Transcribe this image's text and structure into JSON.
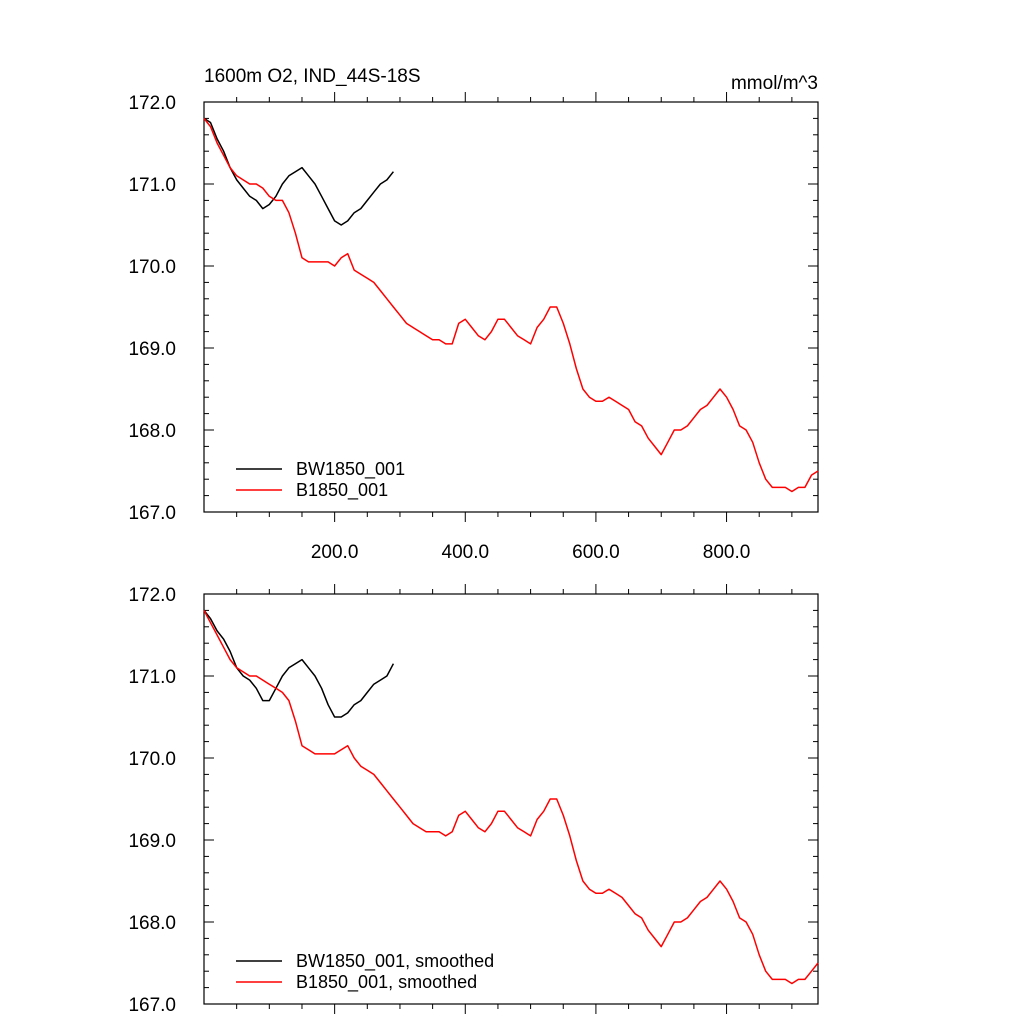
{
  "title_left": "1600m O2, IND_44S-18S",
  "title_right": "mmol/m^3",
  "colors": {
    "bw": "#000000",
    "b": "#ff0000"
  },
  "chart_data": [
    {
      "type": "line",
      "xlim": [
        0,
        940
      ],
      "ylim": [
        167,
        172
      ],
      "x_ticks": [
        200,
        400,
        600,
        800
      ],
      "x_tick_labels": [
        "200.0",
        "400.0",
        "600.0",
        "800.0"
      ],
      "y_ticks": [
        167,
        168,
        169,
        170,
        171,
        172
      ],
      "y_tick_labels": [
        "167.0",
        "168.0",
        "169.0",
        "170.0",
        "171.0",
        "172.0"
      ],
      "legend_position": "bottom-left",
      "series": [
        {
          "name": "BW1850_001",
          "color": "#000000",
          "x": [
            0,
            10,
            20,
            30,
            40,
            50,
            60,
            70,
            80,
            90,
            100,
            110,
            120,
            130,
            140,
            150,
            160,
            170,
            180,
            190,
            200,
            210,
            220,
            230,
            240,
            250,
            260,
            270,
            280,
            290
          ],
          "y": [
            171.8,
            171.75,
            171.55,
            171.4,
            171.2,
            171.05,
            170.95,
            170.85,
            170.8,
            170.7,
            170.75,
            170.85,
            171.0,
            171.1,
            171.15,
            171.2,
            171.1,
            171.0,
            170.85,
            170.7,
            170.55,
            170.5,
            170.55,
            170.65,
            170.7,
            170.8,
            170.9,
            171.0,
            171.05,
            171.15
          ]
        },
        {
          "name": "B1850_001",
          "color": "#ff0000",
          "x": [
            0,
            10,
            20,
            30,
            40,
            50,
            60,
            70,
            80,
            90,
            100,
            110,
            120,
            130,
            140,
            150,
            160,
            170,
            180,
            190,
            200,
            210,
            220,
            230,
            240,
            250,
            260,
            270,
            280,
            290,
            300,
            310,
            320,
            330,
            340,
            350,
            360,
            370,
            380,
            390,
            400,
            410,
            420,
            430,
            440,
            450,
            460,
            470,
            480,
            490,
            500,
            510,
            520,
            530,
            540,
            550,
            560,
            570,
            580,
            590,
            600,
            610,
            620,
            630,
            640,
            650,
            660,
            670,
            680,
            690,
            700,
            710,
            720,
            730,
            740,
            750,
            760,
            770,
            780,
            790,
            800,
            810,
            820,
            830,
            840,
            850,
            860,
            870,
            880,
            890,
            900,
            910,
            920,
            930,
            940
          ],
          "y": [
            171.8,
            171.7,
            171.5,
            171.35,
            171.2,
            171.1,
            171.05,
            171.0,
            171.0,
            170.95,
            170.85,
            170.8,
            170.8,
            170.65,
            170.4,
            170.1,
            170.05,
            170.05,
            170.05,
            170.05,
            170.0,
            170.1,
            170.15,
            169.95,
            169.9,
            169.85,
            169.8,
            169.7,
            169.6,
            169.5,
            169.4,
            169.3,
            169.25,
            169.2,
            169.15,
            169.1,
            169.1,
            169.05,
            169.05,
            169.3,
            169.35,
            169.25,
            169.15,
            169.1,
            169.2,
            169.35,
            169.35,
            169.25,
            169.15,
            169.1,
            169.05,
            169.25,
            169.35,
            169.5,
            169.5,
            169.3,
            169.05,
            168.75,
            168.5,
            168.4,
            168.35,
            168.35,
            168.4,
            168.35,
            168.3,
            168.25,
            168.1,
            168.05,
            167.9,
            167.8,
            167.7,
            167.85,
            168.0,
            168.0,
            168.05,
            168.15,
            168.25,
            168.3,
            168.4,
            168.5,
            168.4,
            168.25,
            168.05,
            168.0,
            167.85,
            167.6,
            167.4,
            167.3,
            167.3,
            167.3,
            167.25,
            167.3,
            167.3,
            167.45,
            167.5
          ]
        }
      ]
    },
    {
      "type": "line",
      "xlim": [
        0,
        940
      ],
      "ylim": [
        167,
        172
      ],
      "y_ticks": [
        167,
        168,
        169,
        170,
        171,
        172
      ],
      "y_tick_labels": [
        "167.0",
        "168.0",
        "169.0",
        "170.0",
        "171.0",
        "172.0"
      ],
      "legend_position": "bottom-left",
      "series": [
        {
          "name": "BW1850_001, smoothed",
          "color": "#000000",
          "x": [
            0,
            10,
            20,
            30,
            40,
            50,
            60,
            70,
            80,
            90,
            100,
            110,
            120,
            130,
            140,
            150,
            160,
            170,
            180,
            190,
            200,
            210,
            220,
            230,
            240,
            250,
            260,
            270,
            280,
            290
          ],
          "y": [
            171.8,
            171.7,
            171.55,
            171.45,
            171.3,
            171.1,
            171.0,
            170.95,
            170.85,
            170.7,
            170.7,
            170.85,
            171.0,
            171.1,
            171.15,
            171.2,
            171.1,
            171.0,
            170.85,
            170.65,
            170.5,
            170.5,
            170.55,
            170.65,
            170.7,
            170.8,
            170.9,
            170.95,
            171.0,
            171.15
          ]
        },
        {
          "name": "B1850_001, smoothed",
          "color": "#ff0000",
          "x": [
            0,
            10,
            20,
            30,
            40,
            50,
            60,
            70,
            80,
            90,
            100,
            110,
            120,
            130,
            140,
            150,
            160,
            170,
            180,
            190,
            200,
            210,
            220,
            230,
            240,
            250,
            260,
            270,
            280,
            290,
            300,
            310,
            320,
            330,
            340,
            350,
            360,
            370,
            380,
            390,
            400,
            410,
            420,
            430,
            440,
            450,
            460,
            470,
            480,
            490,
            500,
            510,
            520,
            530,
            540,
            550,
            560,
            570,
            580,
            590,
            600,
            610,
            620,
            630,
            640,
            650,
            660,
            670,
            680,
            690,
            700,
            710,
            720,
            730,
            740,
            750,
            760,
            770,
            780,
            790,
            800,
            810,
            820,
            830,
            840,
            850,
            860,
            870,
            880,
            890,
            900,
            910,
            920,
            930,
            940
          ],
          "y": [
            171.8,
            171.65,
            171.5,
            171.35,
            171.2,
            171.1,
            171.05,
            171.0,
            171.0,
            170.95,
            170.9,
            170.85,
            170.8,
            170.7,
            170.45,
            170.15,
            170.1,
            170.05,
            170.05,
            170.05,
            170.05,
            170.1,
            170.15,
            170.0,
            169.9,
            169.85,
            169.8,
            169.7,
            169.6,
            169.5,
            169.4,
            169.3,
            169.2,
            169.15,
            169.1,
            169.1,
            169.1,
            169.05,
            169.1,
            169.3,
            169.35,
            169.25,
            169.15,
            169.1,
            169.2,
            169.35,
            169.35,
            169.25,
            169.15,
            169.1,
            169.05,
            169.25,
            169.35,
            169.5,
            169.5,
            169.3,
            169.05,
            168.75,
            168.5,
            168.4,
            168.35,
            168.35,
            168.4,
            168.35,
            168.3,
            168.2,
            168.1,
            168.05,
            167.9,
            167.8,
            167.7,
            167.85,
            168.0,
            168.0,
            168.05,
            168.15,
            168.25,
            168.3,
            168.4,
            168.5,
            168.4,
            168.25,
            168.05,
            168.0,
            167.85,
            167.6,
            167.4,
            167.3,
            167.3,
            167.3,
            167.25,
            167.3,
            167.3,
            167.4,
            167.5
          ]
        }
      ]
    }
  ]
}
